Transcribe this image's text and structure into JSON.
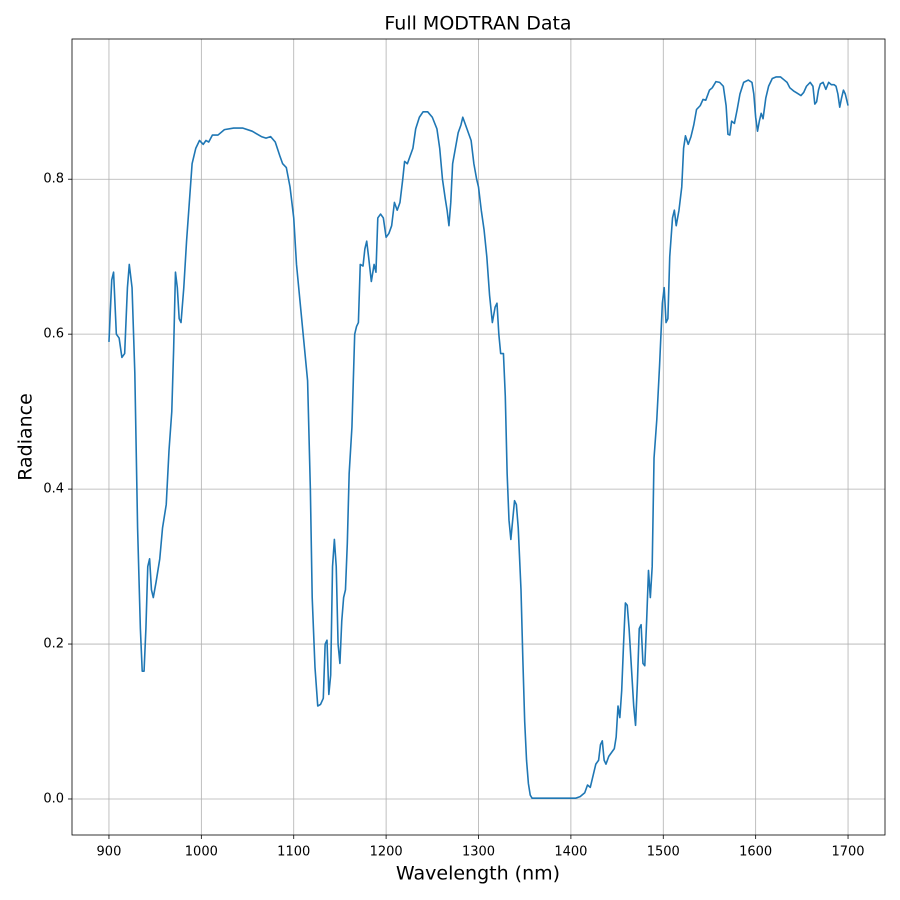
{
  "chart_data": {
    "type": "line",
    "title": "Full MODTRAN Data",
    "xlabel": "Wavelength (nm)",
    "ylabel": "Radiance",
    "xlim": [
      860,
      1740
    ],
    "ylim": [
      -0.0465,
      0.981
    ],
    "xticks": [
      900,
      1000,
      1100,
      1200,
      1300,
      1400,
      1500,
      1600,
      1700
    ],
    "yticks": [
      {
        "value": 0,
        "label": "0.0"
      },
      0.2,
      0.4,
      0.6,
      0.8
    ],
    "grid": true,
    "series": [
      {
        "color": "#1f77b4",
        "x": [
          900,
          903,
          905,
          908,
          911,
          914,
          917,
          920,
          922,
          925,
          928,
          931,
          934,
          936,
          938,
          940,
          942,
          944,
          946,
          948,
          951,
          955,
          958,
          962,
          965,
          968,
          970,
          972,
          974,
          976,
          978,
          981,
          984,
          987,
          990,
          994,
          998,
          1002,
          1005,
          1008,
          1012,
          1018,
          1025,
          1035,
          1045,
          1055,
          1065,
          1070,
          1075,
          1080,
          1085,
          1088,
          1092,
          1096,
          1100,
          1103,
          1107,
          1111,
          1115,
          1118,
          1120,
          1123,
          1126,
          1129,
          1132,
          1134,
          1136,
          1138,
          1140,
          1142,
          1144,
          1146,
          1148,
          1150,
          1152,
          1154,
          1156,
          1158,
          1160,
          1163,
          1166,
          1168,
          1170,
          1172,
          1175,
          1177,
          1179,
          1181,
          1184,
          1187,
          1189,
          1191,
          1194,
          1197,
          1200,
          1203,
          1206,
          1209,
          1212,
          1215,
          1218,
          1220,
          1223,
          1226,
          1229,
          1232,
          1236,
          1240,
          1245,
          1250,
          1255,
          1258,
          1261,
          1264,
          1266,
          1268,
          1270,
          1272,
          1275,
          1278,
          1281,
          1283,
          1286,
          1289,
          1292,
          1295,
          1298,
          1300,
          1303,
          1306,
          1309,
          1312,
          1315,
          1318,
          1320,
          1322,
          1324,
          1327,
          1329,
          1331,
          1333,
          1335,
          1337,
          1339,
          1341,
          1343,
          1346,
          1348,
          1350,
          1352,
          1354,
          1356,
          1358,
          1370,
          1390,
          1405,
          1410,
          1415,
          1418,
          1421,
          1424,
          1427,
          1430,
          1432,
          1434,
          1436,
          1438,
          1441,
          1444,
          1447,
          1449,
          1451,
          1453,
          1455,
          1457,
          1459,
          1461,
          1463,
          1466,
          1468,
          1470,
          1472,
          1474,
          1476,
          1478,
          1480,
          1482,
          1484,
          1486,
          1488,
          1490,
          1493,
          1496,
          1499,
          1501,
          1503,
          1505,
          1507,
          1510,
          1512,
          1514,
          1517,
          1520,
          1522,
          1524,
          1527,
          1530,
          1533,
          1536,
          1540,
          1543,
          1546,
          1550,
          1553,
          1557,
          1561,
          1565,
          1568,
          1570,
          1572,
          1574,
          1577,
          1580,
          1583,
          1587,
          1592,
          1596,
          1598,
          1600,
          1602,
          1604,
          1606,
          1608,
          1611,
          1614,
          1618,
          1622,
          1627,
          1631,
          1634,
          1637,
          1641,
          1645,
          1649,
          1652,
          1655,
          1659,
          1662,
          1664,
          1666,
          1668,
          1670,
          1673,
          1676,
          1679,
          1682,
          1685,
          1687,
          1689,
          1691,
          1693,
          1695,
          1697,
          1700
        ],
        "values": [
          0.59,
          0.67,
          0.68,
          0.6,
          0.595,
          0.57,
          0.575,
          0.66,
          0.69,
          0.66,
          0.55,
          0.35,
          0.22,
          0.165,
          0.165,
          0.22,
          0.3,
          0.31,
          0.27,
          0.26,
          0.28,
          0.31,
          0.35,
          0.38,
          0.45,
          0.5,
          0.58,
          0.68,
          0.66,
          0.62,
          0.615,
          0.66,
          0.72,
          0.77,
          0.82,
          0.84,
          0.85,
          0.845,
          0.85,
          0.848,
          0.857,
          0.857,
          0.864,
          0.866,
          0.866,
          0.862,
          0.855,
          0.853,
          0.855,
          0.848,
          0.83,
          0.82,
          0.815,
          0.79,
          0.75,
          0.69,
          0.64,
          0.59,
          0.54,
          0.4,
          0.26,
          0.17,
          0.12,
          0.122,
          0.13,
          0.2,
          0.205,
          0.135,
          0.16,
          0.3,
          0.335,
          0.3,
          0.2,
          0.175,
          0.23,
          0.26,
          0.27,
          0.33,
          0.42,
          0.48,
          0.6,
          0.61,
          0.615,
          0.69,
          0.688,
          0.71,
          0.72,
          0.7,
          0.668,
          0.69,
          0.68,
          0.75,
          0.755,
          0.75,
          0.725,
          0.73,
          0.74,
          0.77,
          0.76,
          0.77,
          0.8,
          0.823,
          0.82,
          0.83,
          0.84,
          0.865,
          0.88,
          0.887,
          0.887,
          0.88,
          0.865,
          0.84,
          0.8,
          0.775,
          0.76,
          0.74,
          0.77,
          0.82,
          0.84,
          0.86,
          0.87,
          0.88,
          0.87,
          0.86,
          0.85,
          0.82,
          0.8,
          0.79,
          0.76,
          0.735,
          0.7,
          0.65,
          0.615,
          0.635,
          0.64,
          0.6,
          0.575,
          0.575,
          0.52,
          0.42,
          0.36,
          0.335,
          0.36,
          0.385,
          0.38,
          0.35,
          0.27,
          0.18,
          0.1,
          0.05,
          0.02,
          0.005,
          0.001,
          0.001,
          0.001,
          0.001,
          0.003,
          0.008,
          0.018,
          0.015,
          0.03,
          0.045,
          0.05,
          0.07,
          0.075,
          0.05,
          0.045,
          0.055,
          0.06,
          0.065,
          0.08,
          0.12,
          0.105,
          0.14,
          0.2,
          0.253,
          0.25,
          0.22,
          0.16,
          0.12,
          0.095,
          0.15,
          0.22,
          0.225,
          0.175,
          0.172,
          0.23,
          0.295,
          0.26,
          0.3,
          0.44,
          0.49,
          0.56,
          0.64,
          0.66,
          0.615,
          0.62,
          0.7,
          0.75,
          0.76,
          0.74,
          0.76,
          0.79,
          0.84,
          0.856,
          0.845,
          0.855,
          0.87,
          0.89,
          0.895,
          0.903,
          0.902,
          0.915,
          0.918,
          0.926,
          0.925,
          0.92,
          0.895,
          0.858,
          0.857,
          0.875,
          0.872,
          0.89,
          0.91,
          0.925,
          0.928,
          0.925,
          0.91,
          0.88,
          0.862,
          0.875,
          0.885,
          0.878,
          0.905,
          0.92,
          0.93,
          0.932,
          0.932,
          0.928,
          0.925,
          0.918,
          0.914,
          0.911,
          0.908,
          0.912,
          0.92,
          0.925,
          0.92,
          0.897,
          0.9,
          0.915,
          0.923,
          0.925,
          0.916,
          0.925,
          0.922,
          0.922,
          0.92,
          0.91,
          0.893,
          0.905,
          0.915,
          0.91,
          0.895
        ]
      }
    ]
  }
}
